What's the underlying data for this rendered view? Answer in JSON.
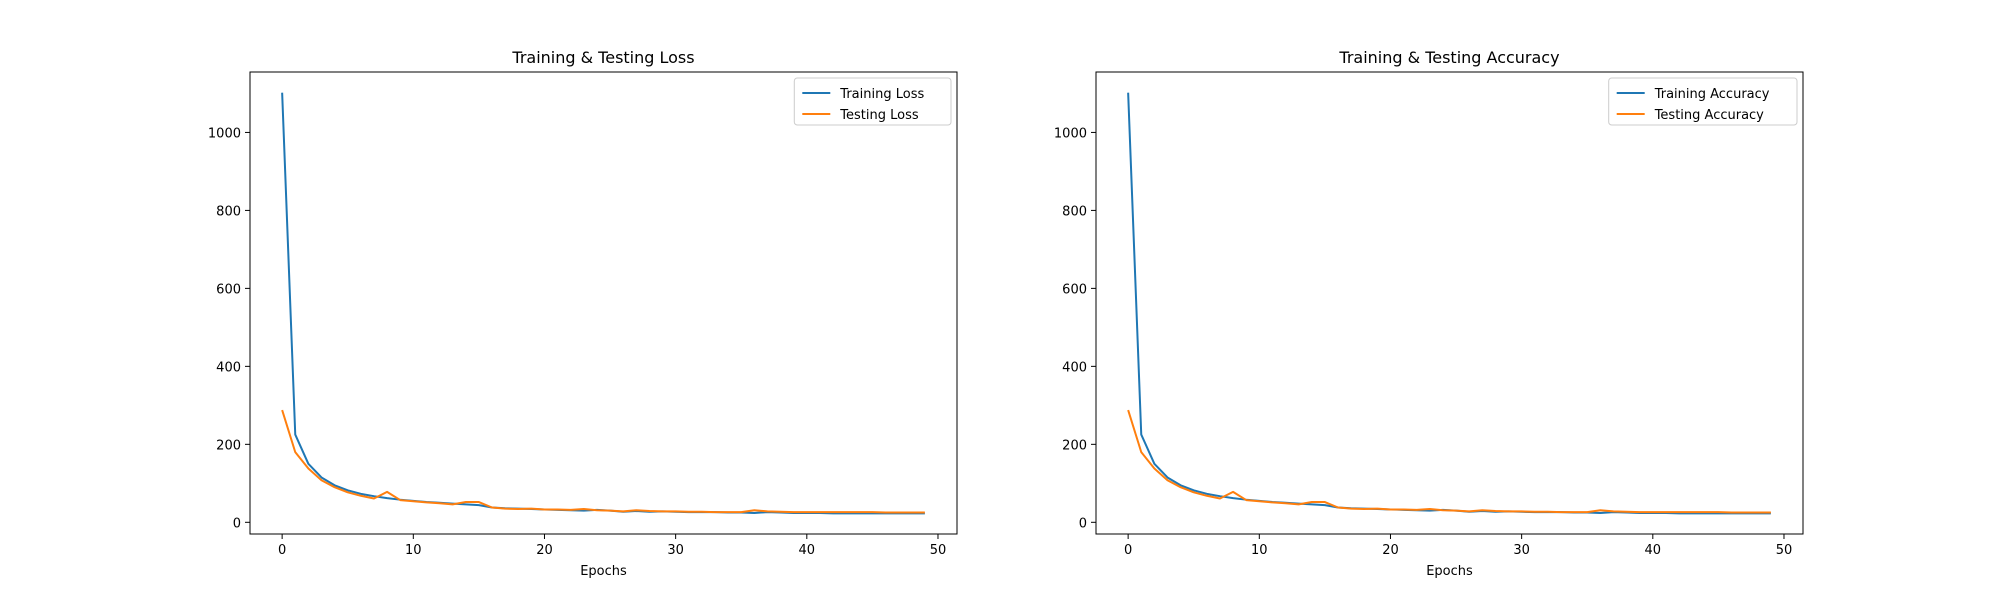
{
  "chart_data": [
    {
      "type": "line",
      "title": "Training & Testing Loss",
      "xlabel": "Epochs",
      "ylabel": "",
      "xlim": [
        -2.45,
        51.45
      ],
      "ylim": [
        -30,
        1155
      ],
      "xticks": [
        0,
        10,
        20,
        30,
        40,
        50
      ],
      "yticks": [
        0,
        200,
        400,
        600,
        800,
        1000
      ],
      "legend": "top-right",
      "grid": false,
      "series": [
        {
          "name": "Training Loss",
          "color": "#1f77b4",
          "x": [
            0,
            1,
            2,
            3,
            4,
            5,
            6,
            7,
            8,
            9,
            10,
            11,
            12,
            13,
            14,
            15,
            16,
            17,
            18,
            19,
            20,
            21,
            22,
            23,
            24,
            25,
            26,
            27,
            28,
            29,
            30,
            31,
            32,
            33,
            34,
            35,
            36,
            37,
            38,
            39,
            40,
            41,
            42,
            43,
            44,
            45,
            46,
            47,
            48,
            49
          ],
          "values": [
            1102,
            225,
            150,
            115,
            95,
            82,
            73,
            67,
            62,
            58,
            55,
            52,
            50,
            48,
            46,
            44,
            38,
            36,
            35,
            34,
            33,
            32,
            31,
            30,
            32,
            30,
            27,
            29,
            27,
            28,
            27,
            26,
            26,
            26,
            25,
            25,
            24,
            26,
            25,
            24,
            24,
            24,
            23,
            23,
            23,
            23,
            23,
            23,
            23,
            23
          ]
        },
        {
          "name": "Testing Loss",
          "color": "#ff7f0e",
          "x": [
            0,
            1,
            2,
            3,
            4,
            5,
            6,
            7,
            8,
            9,
            10,
            11,
            12,
            13,
            14,
            15,
            16,
            17,
            18,
            19,
            20,
            21,
            22,
            23,
            24,
            25,
            26,
            27,
            28,
            29,
            30,
            31,
            32,
            33,
            34,
            35,
            36,
            37,
            38,
            39,
            40,
            41,
            42,
            43,
            44,
            45,
            46,
            47,
            48,
            49
          ],
          "values": [
            288,
            180,
            138,
            108,
            90,
            77,
            68,
            61,
            78,
            57,
            54,
            51,
            49,
            46,
            52,
            52,
            38,
            35,
            34,
            35,
            33,
            33,
            32,
            34,
            31,
            30,
            28,
            31,
            29,
            28,
            28,
            27,
            27,
            26,
            26,
            26,
            31,
            28,
            27,
            26,
            26,
            26,
            26,
            26,
            26,
            26,
            25,
            25,
            25,
            25
          ]
        }
      ]
    },
    {
      "type": "line",
      "title": "Training & Testing Accuracy",
      "xlabel": "Epochs",
      "ylabel": "",
      "xlim": [
        -2.45,
        51.45
      ],
      "ylim": [
        -30,
        1155
      ],
      "xticks": [
        0,
        10,
        20,
        30,
        40,
        50
      ],
      "yticks": [
        0,
        200,
        400,
        600,
        800,
        1000
      ],
      "legend": "top-right",
      "grid": false,
      "series": [
        {
          "name": "Training Accuracy",
          "color": "#1f77b4",
          "x": [
            0,
            1,
            2,
            3,
            4,
            5,
            6,
            7,
            8,
            9,
            10,
            11,
            12,
            13,
            14,
            15,
            16,
            17,
            18,
            19,
            20,
            21,
            22,
            23,
            24,
            25,
            26,
            27,
            28,
            29,
            30,
            31,
            32,
            33,
            34,
            35,
            36,
            37,
            38,
            39,
            40,
            41,
            42,
            43,
            44,
            45,
            46,
            47,
            48,
            49
          ],
          "values": [
            1102,
            225,
            150,
            115,
            95,
            82,
            73,
            67,
            62,
            58,
            55,
            52,
            50,
            48,
            46,
            44,
            38,
            36,
            35,
            34,
            33,
            32,
            31,
            30,
            32,
            30,
            27,
            29,
            27,
            28,
            27,
            26,
            26,
            26,
            25,
            25,
            24,
            26,
            25,
            24,
            24,
            24,
            23,
            23,
            23,
            23,
            23,
            23,
            23,
            23
          ]
        },
        {
          "name": "Testing Accuracy",
          "color": "#ff7f0e",
          "x": [
            0,
            1,
            2,
            3,
            4,
            5,
            6,
            7,
            8,
            9,
            10,
            11,
            12,
            13,
            14,
            15,
            16,
            17,
            18,
            19,
            20,
            21,
            22,
            23,
            24,
            25,
            26,
            27,
            28,
            29,
            30,
            31,
            32,
            33,
            34,
            35,
            36,
            37,
            38,
            39,
            40,
            41,
            42,
            43,
            44,
            45,
            46,
            47,
            48,
            49
          ],
          "values": [
            288,
            180,
            138,
            108,
            90,
            77,
            68,
            61,
            78,
            57,
            54,
            51,
            49,
            46,
            52,
            52,
            38,
            35,
            34,
            35,
            33,
            33,
            32,
            34,
            31,
            30,
            28,
            31,
            29,
            28,
            28,
            27,
            27,
            26,
            26,
            26,
            31,
            28,
            27,
            26,
            26,
            26,
            26,
            26,
            26,
            26,
            25,
            25,
            25,
            25
          ]
        }
      ]
    }
  ]
}
